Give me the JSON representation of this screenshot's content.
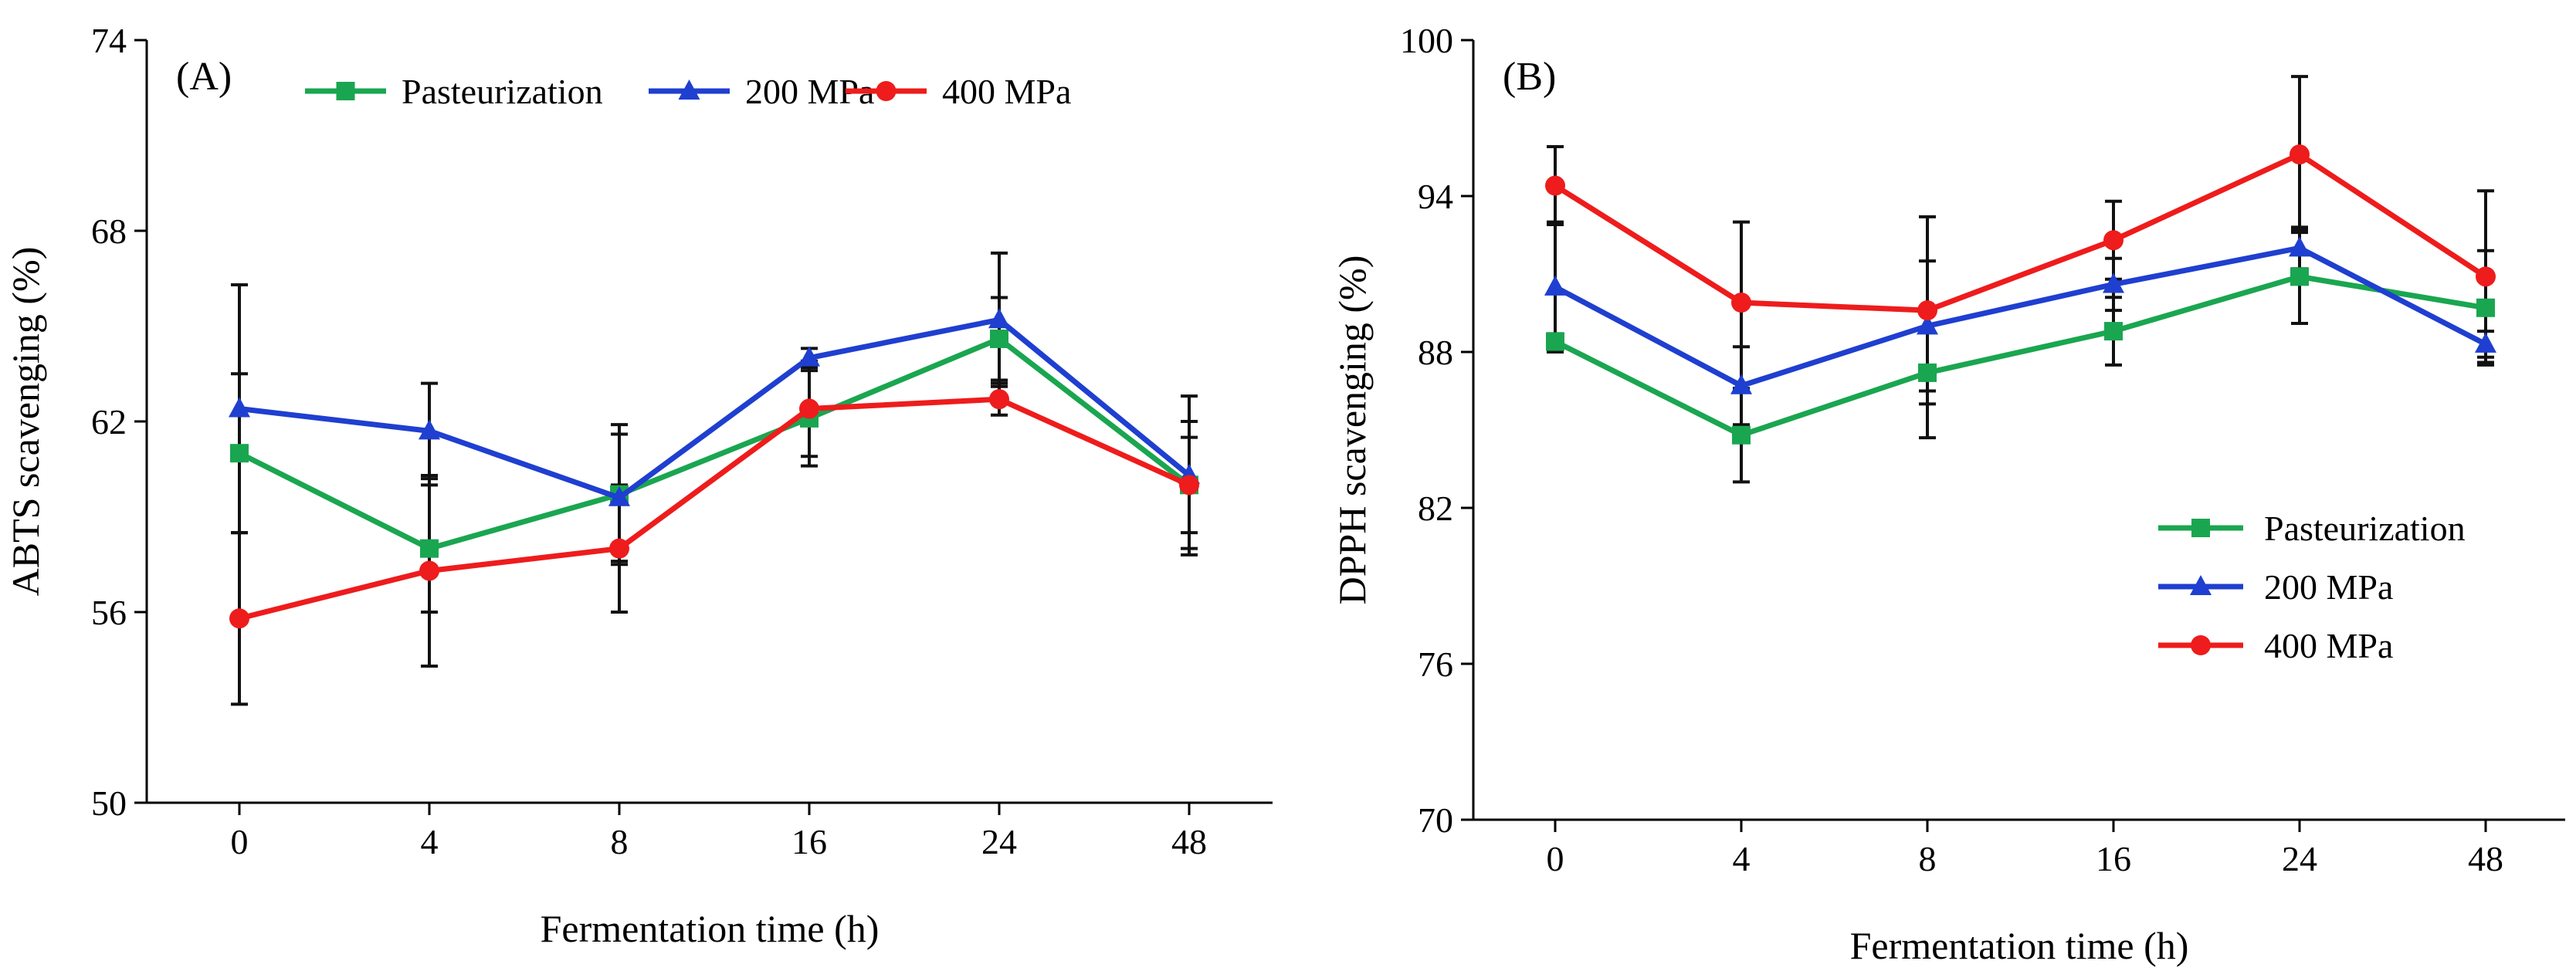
{
  "chart_data": [
    {
      "type": "line",
      "panel_label": "(A)",
      "xlabel": "Fermentation time (h)",
      "ylabel": "ABTS scavenging (%)",
      "categories": [
        "0",
        "4",
        "8",
        "16",
        "24",
        "48"
      ],
      "ylim": [
        50,
        74
      ],
      "yticks": [
        "50",
        "56",
        "62",
        "68",
        "74"
      ],
      "legend_position": "top",
      "series": [
        {
          "name": "Pasteurization",
          "color": "#1aa650",
          "marker": "square",
          "values": [
            61.0,
            58.0,
            59.7,
            62.1,
            64.6,
            60.0
          ],
          "errors": [
            2.5,
            2.0,
            2.2,
            1.5,
            1.3,
            2.0
          ]
        },
        {
          "name": "200 MPa",
          "color": "#1f3fd0",
          "marker": "triangle",
          "values": [
            62.4,
            61.7,
            59.6,
            64.0,
            65.2,
            60.3
          ],
          "errors": [
            3.9,
            1.5,
            2.0,
            0.3,
            2.1,
            2.5
          ]
        },
        {
          "name": "400 MPa",
          "color": "#ee1c1c",
          "marker": "circle",
          "values": [
            55.8,
            57.3,
            58.0,
            62.4,
            62.7,
            60.0
          ],
          "errors": [
            2.7,
            3.0,
            2.0,
            1.5,
            0.5,
            1.5
          ]
        }
      ]
    },
    {
      "type": "line",
      "panel_label": "(B)",
      "xlabel": "Fermentation time (h)",
      "ylabel": "DPPH scavenging (%)",
      "categories": [
        "0",
        "4",
        "8",
        "16",
        "24",
        "48"
      ],
      "ylim": [
        70,
        100
      ],
      "yticks": [
        "70",
        "76",
        "82",
        "88",
        "94",
        "100"
      ],
      "legend_position": "right",
      "series": [
        {
          "name": "Pasteurization",
          "color": "#1aa650",
          "marker": "square",
          "values": [
            88.4,
            84.8,
            87.2,
            88.8,
            90.9,
            89.7
          ],
          "errors": [
            0.3,
            1.8,
            2.5,
            1.3,
            1.8,
            2.2
          ]
        },
        {
          "name": "200 MPa",
          "color": "#1f3fd0",
          "marker": "triangle",
          "values": [
            90.5,
            86.7,
            89.0,
            90.6,
            92.0,
            88.3
          ],
          "errors": [
            2.5,
            1.5,
            2.5,
            1.0,
            0.8,
            0.5
          ]
        },
        {
          "name": "400 MPa",
          "color": "#ee1c1c",
          "marker": "circle",
          "values": [
            94.4,
            89.9,
            89.6,
            92.3,
            95.6,
            90.9
          ],
          "errors": [
            1.5,
            3.1,
            3.6,
            1.5,
            3.0,
            3.3
          ]
        }
      ]
    }
  ]
}
